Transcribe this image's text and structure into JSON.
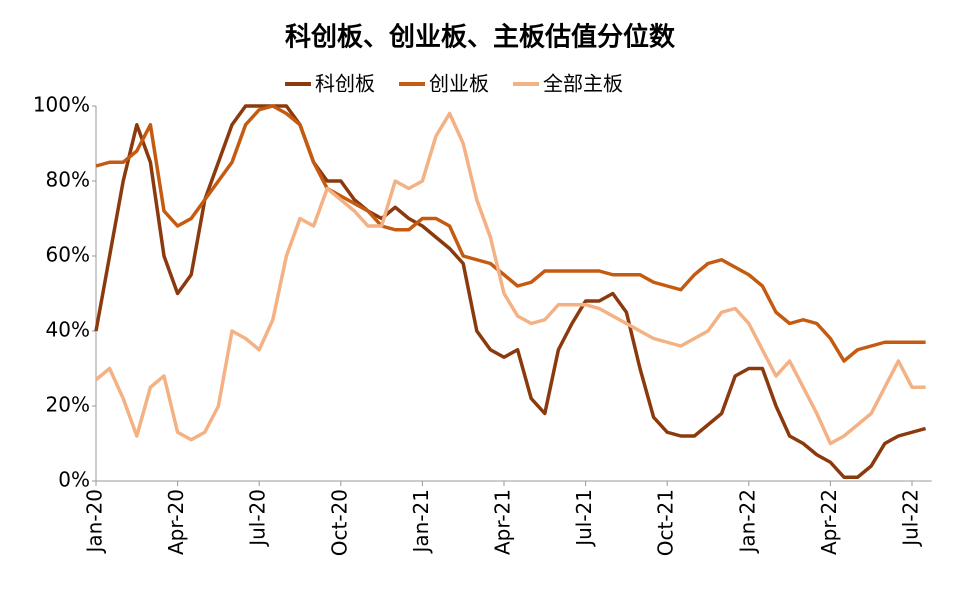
{
  "chart_data": {
    "type": "line",
    "title": "科创板、创业板、主板估值分位数",
    "categories": [
      "Jan-20",
      null,
      null,
      null,
      null,
      null,
      "Apr-20",
      null,
      null,
      null,
      null,
      null,
      "Jul-20",
      null,
      null,
      null,
      null,
      null,
      "Oct-20",
      null,
      null,
      null,
      null,
      null,
      "Jan-21",
      null,
      null,
      null,
      null,
      null,
      "Apr-21",
      null,
      null,
      null,
      null,
      null,
      "Jul-21",
      null,
      null,
      null,
      null,
      null,
      "Oct-21",
      null,
      null,
      null,
      null,
      null,
      "Jan-22",
      null,
      null,
      null,
      null,
      null,
      "Apr-22",
      null,
      null,
      null,
      null,
      null,
      "Jul-22",
      null
    ],
    "series": [
      {
        "name": "科创板",
        "color": "#8b3a0e",
        "values": [
          40,
          60,
          80,
          95,
          85,
          60,
          50,
          55,
          75,
          85,
          95,
          100,
          100,
          100,
          100,
          95,
          85,
          80,
          80,
          75,
          72,
          70,
          73,
          70,
          68,
          65,
          62,
          58,
          40,
          35,
          33,
          35,
          22,
          18,
          35,
          42,
          48,
          48,
          50,
          45,
          30,
          17,
          13,
          12,
          12,
          15,
          18,
          28,
          30,
          30,
          20,
          12,
          10,
          7,
          5,
          1,
          1,
          4,
          10,
          12,
          13,
          14
        ]
      },
      {
        "name": "创业板",
        "color": "#c55a11",
        "values": [
          84,
          85,
          85,
          88,
          95,
          72,
          68,
          70,
          75,
          80,
          85,
          95,
          99,
          100,
          98,
          95,
          85,
          78,
          76,
          74,
          72,
          68,
          67,
          67,
          70,
          70,
          68,
          60,
          59,
          58,
          55,
          52,
          53,
          56,
          56,
          56,
          56,
          56,
          55,
          55,
          55,
          53,
          52,
          51,
          55,
          58,
          59,
          57,
          55,
          52,
          45,
          42,
          43,
          42,
          38,
          32,
          35,
          36,
          37,
          37,
          37,
          37
        ]
      },
      {
        "name": "全部主板",
        "color": "#f4b183",
        "values": [
          27,
          30,
          22,
          12,
          25,
          28,
          13,
          11,
          13,
          20,
          40,
          38,
          35,
          43,
          60,
          70,
          68,
          78,
          75,
          72,
          68,
          68,
          80,
          78,
          80,
          92,
          98,
          90,
          75,
          65,
          50,
          44,
          42,
          43,
          47,
          47,
          47,
          46,
          44,
          42,
          40,
          38,
          37,
          36,
          38,
          40,
          45,
          46,
          42,
          35,
          28,
          32,
          25,
          18,
          10,
          12,
          15,
          18,
          25,
          32,
          25,
          25
        ]
      }
    ],
    "ylim": [
      0,
      100
    ],
    "yticks": [
      {
        "value": 0,
        "label": "0%"
      },
      {
        "value": 20,
        "label": "20%"
      },
      {
        "value": 40,
        "label": "40%"
      },
      {
        "value": 60,
        "label": "60%"
      },
      {
        "value": 80,
        "label": "80%"
      },
      {
        "value": 100,
        "label": "100%"
      }
    ]
  }
}
